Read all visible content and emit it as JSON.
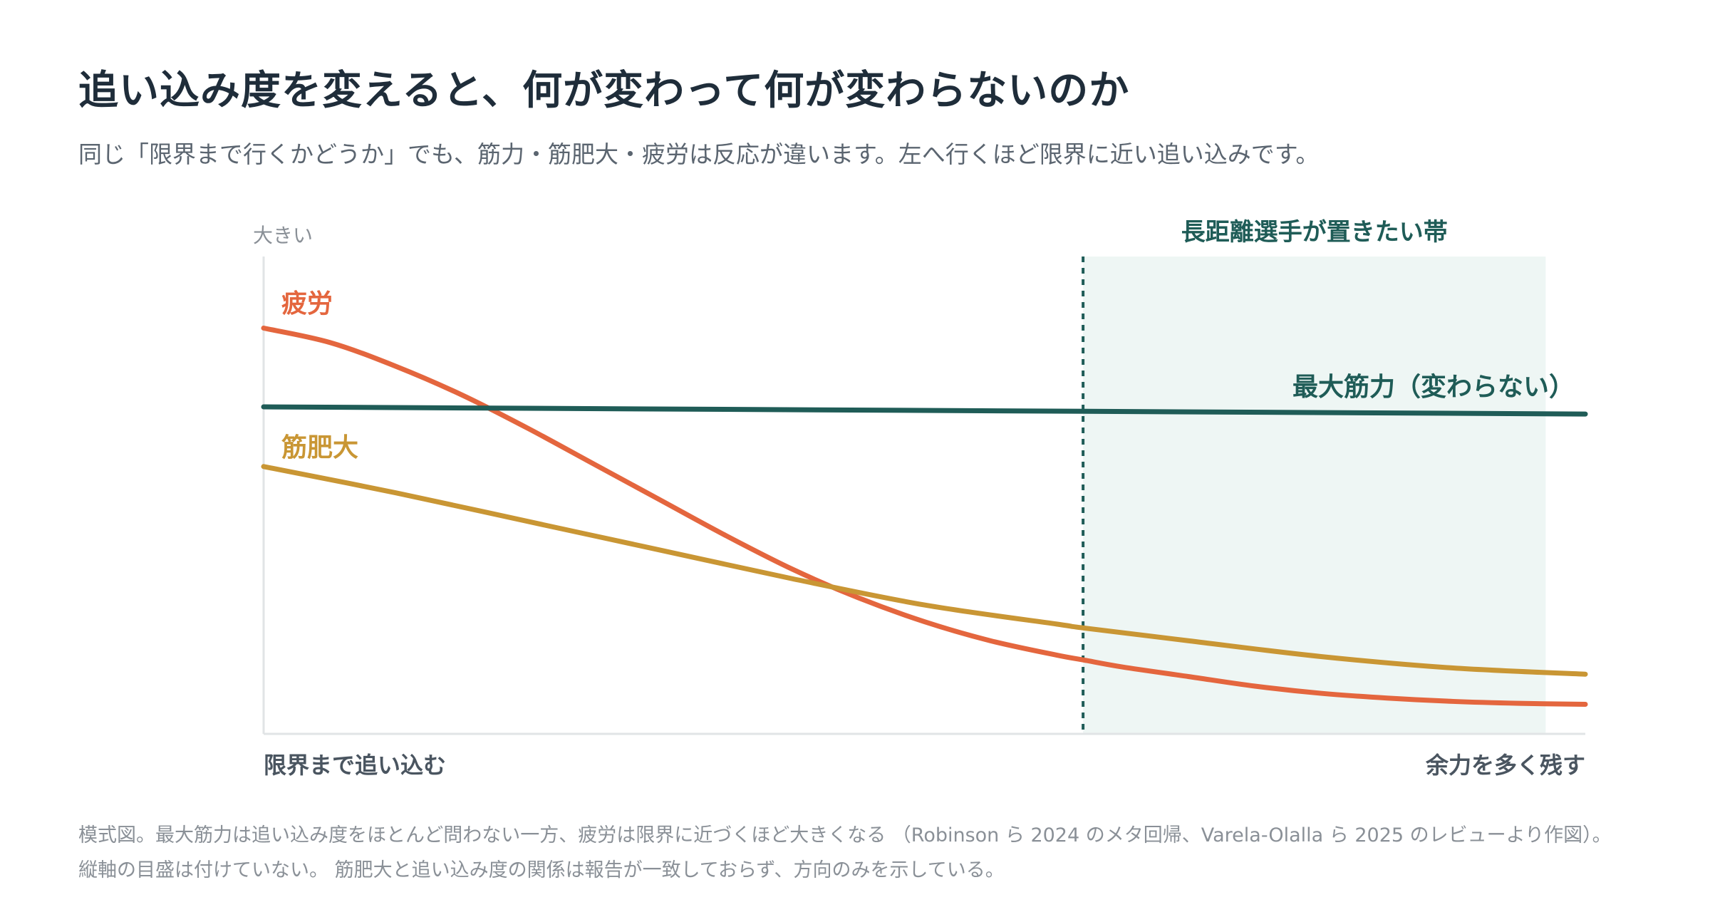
{
  "title": "追い込み度を変えると、何が変わって何が変わらないのか",
  "subtitle": "同じ「限界まで行くかどうか」でも、筋力・筋肥大・疲労は反応が違います。左へ行くほど限界に近い追い込みです。",
  "chart_data": {
    "type": "line",
    "ylabel": "大きい",
    "x_range": [
      0,
      1
    ],
    "y_range": [
      0,
      1
    ],
    "x_tick_labels": {
      "left": "限界まで追い込む",
      "right": "余力を多く残す"
    },
    "band": {
      "label": "長距離選手が置きたい帯",
      "x_start": 0.62,
      "x_end": 0.97,
      "color": "#eef6f4",
      "line_color": "#1f5c57"
    },
    "series": [
      {
        "name": "疲労",
        "color": "#e4663e",
        "x": [
          0,
          0.05,
          0.1,
          0.15,
          0.2,
          0.25,
          0.3,
          0.35,
          0.4,
          0.45,
          0.5,
          0.55,
          0.6,
          0.62,
          0.65,
          0.7,
          0.75,
          0.8,
          0.85,
          0.9,
          0.95,
          1
        ],
        "y": [
          0.85,
          0.82,
          0.77,
          0.71,
          0.64,
          0.565,
          0.49,
          0.415,
          0.345,
          0.285,
          0.235,
          0.195,
          0.165,
          0.155,
          0.14,
          0.12,
          0.1,
          0.085,
          0.075,
          0.068,
          0.064,
          0.062
        ]
      },
      {
        "name": "最大筋力（変わらない）",
        "color": "#1f5c57",
        "x": [
          0,
          1
        ],
        "y": [
          0.685,
          0.67
        ]
      },
      {
        "name": "筋肥大",
        "color": "#c99634",
        "x": [
          0,
          0.1,
          0.2,
          0.3,
          0.4,
          0.5,
          0.6,
          0.62,
          0.7,
          0.8,
          0.9,
          1
        ],
        "y": [
          0.56,
          0.505,
          0.445,
          0.385,
          0.325,
          0.27,
          0.23,
          0.222,
          0.195,
          0.162,
          0.138,
          0.125
        ]
      }
    ]
  },
  "footnote": "模式図。最大筋力は追い込み度をほとんど問わない一方、疲労は限界に近づくほど大きくなる （Robinson ら 2024 のメタ回帰、Varela-Olalla ら 2025 のレビューより作図）。縦軸の目盛は付けていない。 筋肥大と追い込み度の関係は報告が一致しておらず、方向のみを示している。"
}
